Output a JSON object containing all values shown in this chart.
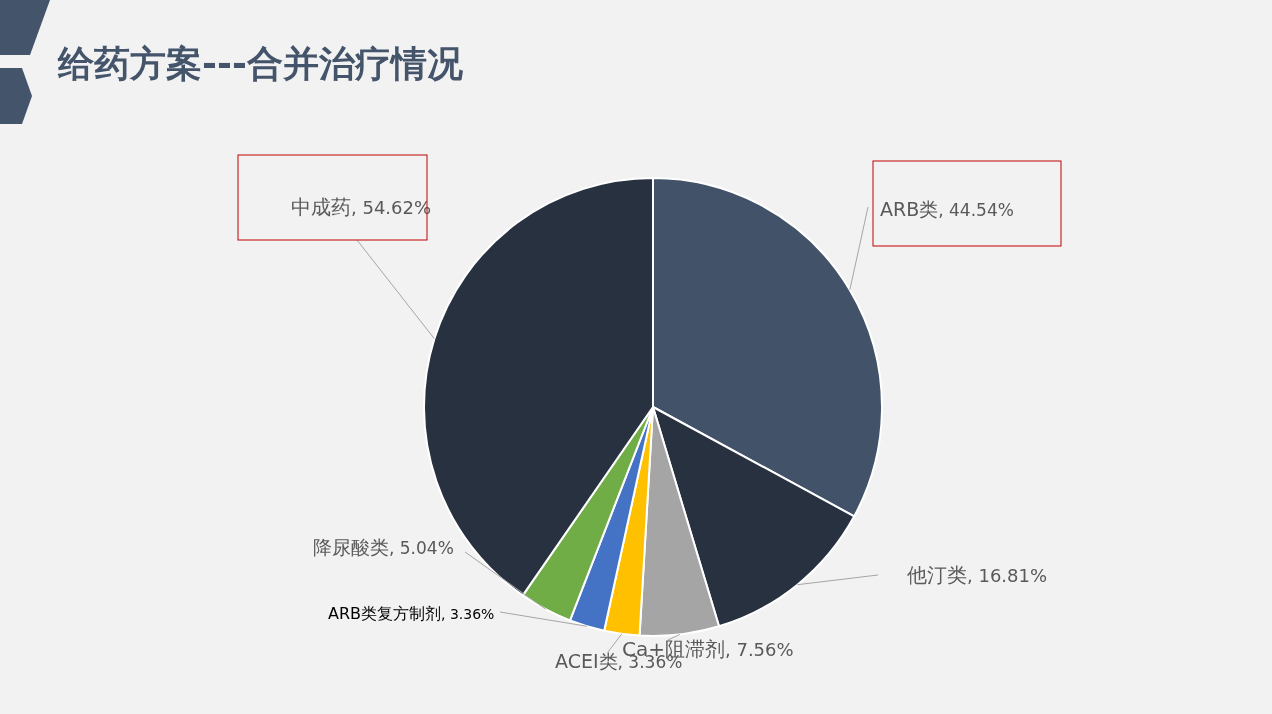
{
  "chart_data": {
    "type": "pie",
    "title": "给药方案---合并治疗情况",
    "categories": [
      "ARB类",
      "他汀类",
      "Ca+阻滞剂",
      "ACEI类",
      "ARB类复方制剂",
      "降尿酸类",
      "中成药"
    ],
    "values": [
      44.54,
      16.81,
      7.56,
      3.36,
      3.36,
      5.04,
      54.62
    ],
    "value_labels": [
      ", 44.54%",
      ", 16.81%",
      ", 7.56%",
      ", 3.36%",
      ", 3.36%",
      ", 5.04%",
      ", 54.62%"
    ],
    "colors": [
      "#425369",
      "#273140",
      "#a5a5a5",
      "#ffc000",
      "#4472c4",
      "#70ad47",
      "#273140"
    ]
  }
}
